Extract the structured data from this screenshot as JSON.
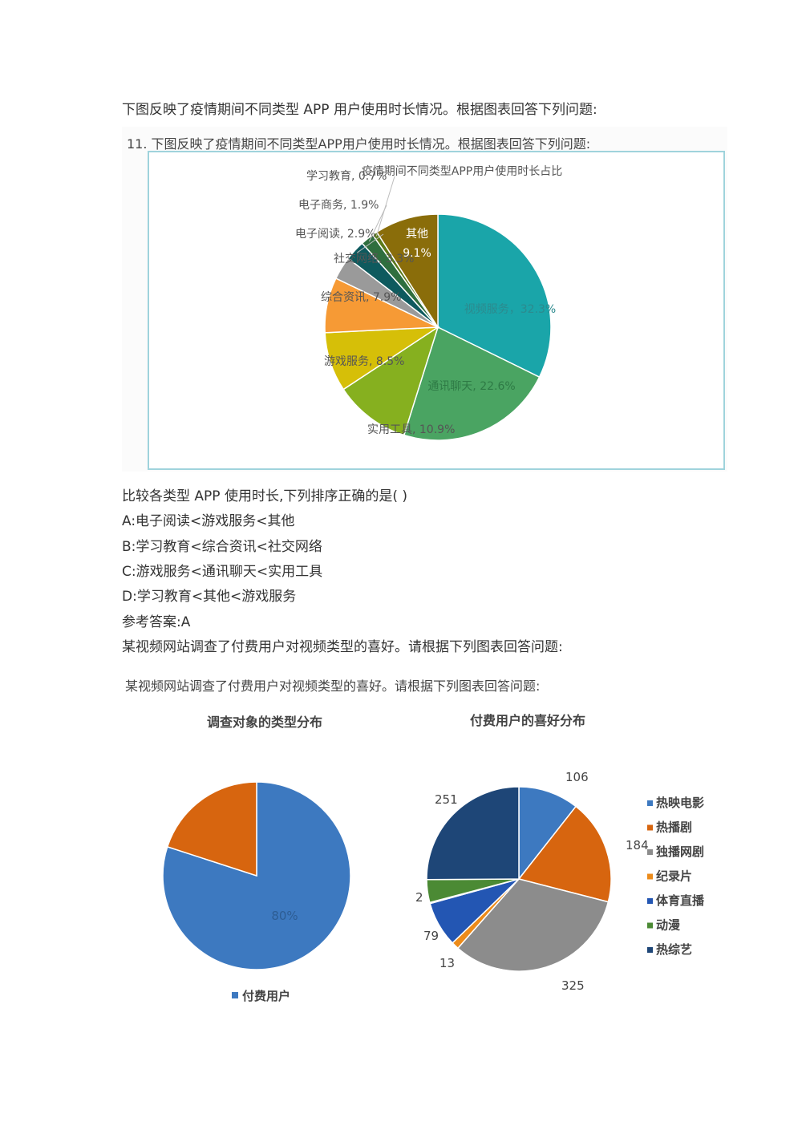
{
  "intro": "下图反映了疫情期间不同类型 APP 用户使用时长情况。根据图表回答下列问题:",
  "question_text": "比较各类型 APP 使用时长,下列排序正确的是( )",
  "options": [
    "A:电子阅读<游戏服务<其他",
    "B:学习教育<综合资讯<社交网络",
    "C:游戏服务<通讯聊天<实用工具",
    "D:学习教育<其他<游戏服务"
  ],
  "answer": "参考答案:A",
  "intro2": "某视频网站调查了付费用户对视频类型的喜好。请根据下列图表回答问题:",
  "chart_data": [
    {
      "type": "pie",
      "caption": "11. 下图反映了疫情期间不同类型APP用户使用时长情况。根据图表回答下列问题:",
      "title": "疫情期间不同类型APP用户使用时长占比",
      "slices": [
        {
          "name": "视频服务",
          "value": 32.3,
          "label": "视频服务，32.3%",
          "color": "#1aa5a9"
        },
        {
          "name": "通讯聊天",
          "value": 22.6,
          "label": "通讯聊天, 22.6%",
          "color": "#4aa462"
        },
        {
          "name": "实用工具",
          "value": 10.9,
          "label": "实用工具, 10.9%",
          "color": "#86b01f"
        },
        {
          "name": "游戏服务",
          "value": 8.5,
          "label": "游戏服务, 8.5%",
          "color": "#d6bf08"
        },
        {
          "name": "综合资讯",
          "value": 7.9,
          "label": "综合资讯, 7.9%",
          "color": "#f69a35"
        },
        {
          "name": "社交网络",
          "value": 3.3,
          "label": "社交网络, 3.3%",
          "color": "#9a9a9a"
        },
        {
          "name": "电子阅读",
          "value": 2.9,
          "label": "电子阅读, 2.9%",
          "color": "#0e5a5e"
        },
        {
          "name": "电子商务",
          "value": 1.9,
          "label": "电子商务, 1.9%",
          "color": "#2f6e3e"
        },
        {
          "name": "学习教育",
          "value": 0.7,
          "label": "学习教育, 0.7%",
          "color": "#5b7a1a"
        },
        {
          "name": "其他",
          "value": 9.1,
          "label": "其他",
          "label2": "9.1%",
          "color": "#8a6d0a"
        }
      ]
    },
    {
      "type": "pie",
      "caption": "某视频网站调查了付费用户对视频类型的喜好。请根据下列图表回答问题:",
      "title": "调查对象的类型分布",
      "slices": [
        {
          "name": "付费用户",
          "value": 80,
          "label": "80%",
          "color": "#3d79c0"
        },
        {
          "name": "",
          "value": 20,
          "label": "",
          "color": "#d7650f"
        }
      ],
      "legend": [
        "付费用户"
      ]
    },
    {
      "type": "pie",
      "title": "付费用户的喜好分布",
      "slices": [
        {
          "name": "热映电影",
          "value": 106,
          "label": "106",
          "color": "#3d79c0"
        },
        {
          "name": "热播剧",
          "value": 184,
          "label": "184",
          "color": "#d7650f"
        },
        {
          "name": "独播网剧",
          "value": 325,
          "label": "325",
          "color": "#8c8c8c"
        },
        {
          "name": "纪录片",
          "value": 13,
          "label": "13",
          "color": "#ec8b1a"
        },
        {
          "name": "体育直播",
          "value": 79,
          "label": "79",
          "color": "#2356b3"
        },
        {
          "name": "动漫",
          "value": 2,
          "label": "2",
          "color": "#4b8a34"
        },
        {
          "name": "动漫",
          "value": 40,
          "label": "",
          "color": "#4b8a34"
        },
        {
          "name": "热综艺",
          "value": 251,
          "label": "251",
          "color": "#1e4677"
        }
      ],
      "legend": [
        {
          "name": "热映电影",
          "color": "#3d79c0"
        },
        {
          "name": "热播剧",
          "color": "#d7650f"
        },
        {
          "name": "独播网剧",
          "color": "#8c8c8c"
        },
        {
          "name": "纪录片",
          "color": "#ec8b1a"
        },
        {
          "name": "体育直播",
          "color": "#2356b3"
        },
        {
          "name": "动漫",
          "color": "#4b8a34"
        },
        {
          "name": "热综艺",
          "color": "#1e4677"
        }
      ]
    }
  ]
}
